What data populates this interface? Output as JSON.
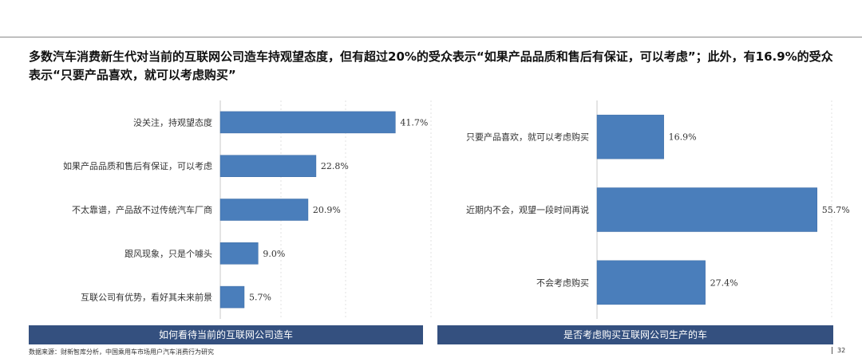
{
  "headline": "多数汽车消费新生代对当前的互联网公司造车持观望态度，但有超过20%的受众表示“如果产品品质和售后有保证，可以考虑”；此外，有16.9%的受众表示“只要产品喜欢，就可以考虑购买”",
  "chart_data": [
    {
      "type": "bar",
      "orientation": "horizontal",
      "title": "如何看待当前的互联网公司造车",
      "categories": [
        "没关注，持观望态度",
        "如果产品品质和售后有保证，可以考虑",
        "不太靠谱，产品敌不过传统汽车厂商",
        "跟风现象，只是个噱头",
        "互联公司有优势，看好其未来前景"
      ],
      "values": [
        41.7,
        22.8,
        20.9,
        9.0,
        5.7
      ],
      "value_labels": [
        "41.7%",
        "22.8%",
        "20.9%",
        "9.0%",
        "5.7%"
      ],
      "unit": "%",
      "xlim": [
        0,
        50
      ],
      "grid": true,
      "colors": {
        "bar": "#4a7ebb"
      }
    },
    {
      "type": "bar",
      "orientation": "horizontal",
      "title": "是否考虑购买互联网公司生产的车",
      "categories": [
        "只要产品喜欢，就可以考虑购买",
        "近期内不会，观望一段时间再说",
        "不会考虑购买"
      ],
      "values": [
        16.9,
        55.7,
        27.4
      ],
      "value_labels": [
        "16.9%",
        "55.7%",
        "27.4%"
      ],
      "unit": "%",
      "xlim": [
        0,
        60
      ],
      "grid": true,
      "colors": {
        "bar": "#4a7ebb"
      }
    }
  ],
  "banners": {
    "left": "如何看待当前的互联网公司造车",
    "right": "是否考虑购买互联网公司生产的车"
  },
  "footer": {
    "source": "数据来源：财新智库分析，中国乘用车市场用户汽车消费行为研究",
    "page": "32"
  },
  "colors": {
    "banner": "#34507f",
    "bar": "#4a7ebb"
  }
}
